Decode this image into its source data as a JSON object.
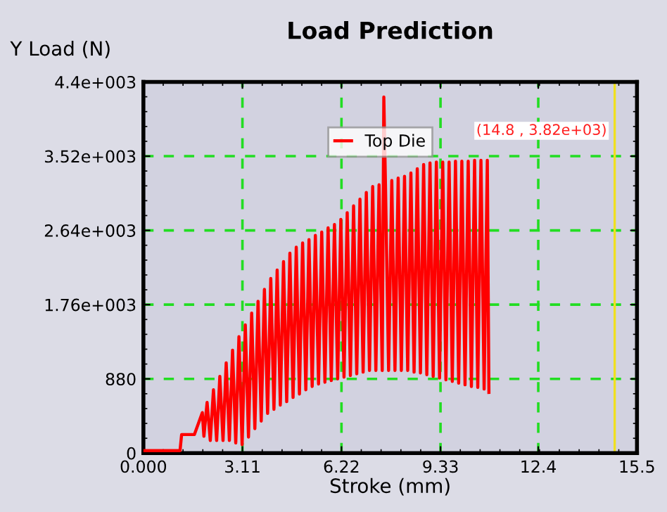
{
  "chart_data": {
    "type": "line",
    "title": "Load Prediction",
    "xlabel": "Stroke (mm)",
    "ylabel": "Y Load (N)",
    "xlim": [
      0,
      15.5
    ],
    "xticks": [
      {
        "value": 0,
        "label": "0.000"
      },
      3.11,
      6.22,
      9.33,
      12.4,
      15.5
    ],
    "ylim": [
      0,
      4400
    ],
    "yticks": [
      0,
      880,
      {
        "value": 1760,
        "label": "1.76e+003"
      },
      {
        "value": 2640,
        "label": "2.64e+003"
      },
      {
        "value": 3520,
        "label": "3.52e+003"
      },
      {
        "value": 4400,
        "label": "4.4e+003"
      }
    ],
    "grid": true,
    "legend": "top",
    "line_style": "solid",
    "marker": "none",
    "series": [
      {
        "name": "Top Die",
        "color": "#ff0000",
        "x": [
          0,
          1.15,
          1.2,
          1.6,
          1.85,
          1.9,
          2.0,
          2.1,
          2.2,
          2.3,
          2.4,
          2.5,
          2.6,
          2.7,
          2.8,
          2.9,
          3.0,
          3.1,
          3.2,
          3.3,
          3.4,
          3.5,
          3.6,
          3.7,
          3.8,
          3.9,
          4.0,
          4.1,
          4.2,
          4.3,
          4.4,
          4.5,
          4.6,
          4.7,
          4.8,
          4.9,
          5.0,
          5.1,
          5.2,
          5.3,
          5.4,
          5.5,
          5.6,
          5.7,
          5.8,
          5.9,
          6.0,
          6.1,
          6.2,
          6.3,
          6.4,
          6.5,
          6.6,
          6.7,
          6.8,
          6.9,
          7.0,
          7.1,
          7.2,
          7.3,
          7.4,
          7.5,
          7.55,
          7.6,
          7.7,
          7.8,
          7.9,
          8.0,
          8.1,
          8.2,
          8.3,
          8.4,
          8.5,
          8.6,
          8.7,
          8.8,
          8.9,
          9.0,
          9.1,
          9.2,
          9.3,
          9.4,
          9.5,
          9.6,
          9.7,
          9.8,
          9.9,
          10.0,
          10.1,
          10.2,
          10.3,
          10.4,
          10.5,
          10.6,
          10.7,
          10.8,
          10.85
        ],
        "values": [
          30,
          30,
          220,
          220,
          480,
          200,
          600,
          150,
          750,
          150,
          910,
          150,
          1070,
          150,
          1220,
          120,
          1380,
          100,
          1520,
          190,
          1660,
          290,
          1800,
          380,
          1940,
          470,
          2070,
          520,
          2170,
          570,
          2270,
          610,
          2370,
          660,
          2440,
          700,
          2490,
          750,
          2530,
          790,
          2580,
          820,
          2620,
          840,
          2670,
          860,
          2710,
          880,
          2770,
          900,
          2850,
          920,
          2930,
          940,
          3010,
          960,
          3090,
          980,
          3160,
          980,
          3180,
          980,
          4220,
          3210,
          980,
          3230,
          980,
          3260,
          980,
          3280,
          980,
          3320,
          960,
          3370,
          950,
          3420,
          930,
          3440,
          910,
          3450,
          890,
          3450,
          870,
          3450,
          850,
          3460,
          830,
          3460,
          810,
          3460,
          790,
          3470,
          780,
          3470,
          760,
          3470,
          720
        ]
      }
    ],
    "ref_lines": [
      {
        "axis": "x",
        "value": 14.8,
        "color": "#f0e020",
        "line_style": "solid"
      }
    ],
    "annotations": [
      {
        "text": "(14.8 , 3.82e+03)",
        "x": 14.8,
        "y": 3820
      }
    ]
  }
}
